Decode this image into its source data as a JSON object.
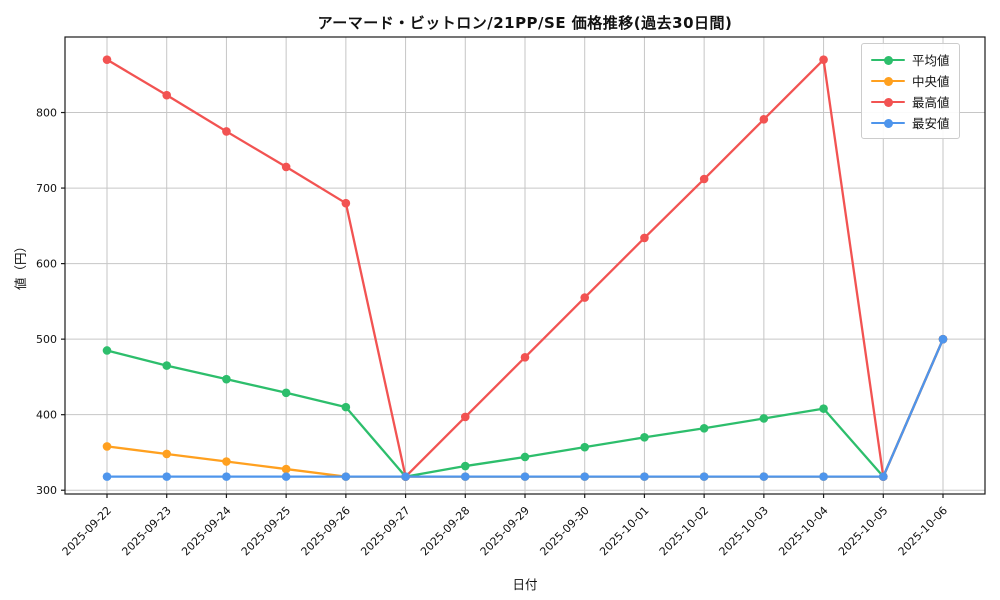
{
  "chart_data": {
    "type": "line",
    "title": "アーマード・ビットロン/21PP/SE 価格推移(過去30日間)",
    "xlabel": "日付",
    "ylabel": "値（円）",
    "x": [
      "2025-09-22",
      "2025-09-23",
      "2025-09-24",
      "2025-09-25",
      "2025-09-26",
      "2025-09-27",
      "2025-09-28",
      "2025-09-29",
      "2025-09-30",
      "2025-10-01",
      "2025-10-02",
      "2025-10-03",
      "2025-10-04",
      "2025-10-05",
      "2025-10-06"
    ],
    "series": [
      {
        "key": "average",
        "name": "平均値",
        "color": "#2dbe6c",
        "values": [
          485,
          465,
          447,
          429,
          410,
          318,
          332,
          344,
          357,
          370,
          382,
          395,
          408,
          318,
          500
        ]
      },
      {
        "key": "median",
        "name": "中央値",
        "color": "#ffa01f",
        "values": [
          358,
          348,
          338,
          328,
          318,
          318,
          318,
          318,
          318,
          318,
          318,
          318,
          318,
          318,
          500
        ]
      },
      {
        "key": "highest",
        "name": "最高値",
        "color": "#f25352",
        "values": [
          870,
          823,
          775,
          728,
          680,
          318,
          397,
          476,
          555,
          634,
          712,
          791,
          870,
          318,
          500
        ]
      },
      {
        "key": "lowest",
        "name": "最安値",
        "color": "#4e95ec",
        "values": [
          318,
          318,
          318,
          318,
          318,
          318,
          318,
          318,
          318,
          318,
          318,
          318,
          318,
          318,
          500
        ]
      }
    ],
    "yticks": [
      300,
      400,
      500,
      600,
      700,
      800
    ],
    "ylim": [
      295,
      900
    ],
    "grid": true,
    "legend_position": "upper right"
  }
}
